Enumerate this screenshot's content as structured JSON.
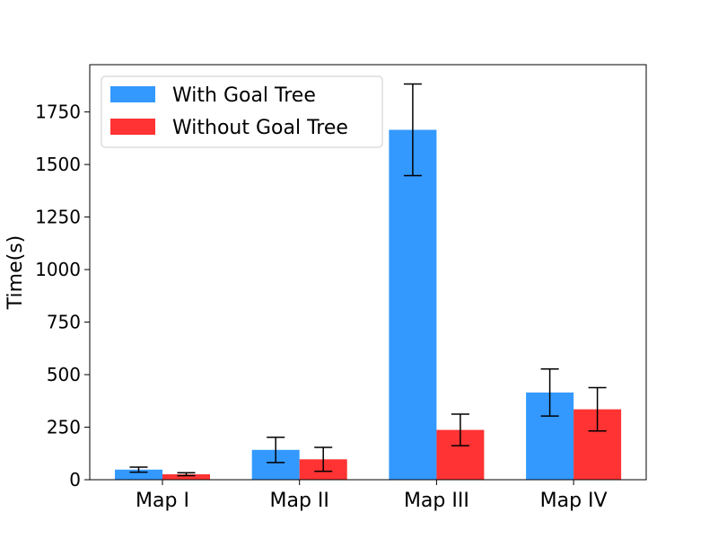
{
  "chart_data": {
    "type": "bar",
    "categories": [
      "Map I",
      "Map II",
      "Map III",
      "Map IV"
    ],
    "series": [
      {
        "name": "With Goal Tree",
        "color": "#3399ff",
        "values": [
          48,
          142,
          1665,
          415
        ],
        "error": [
          12,
          60,
          218,
          112
        ]
      },
      {
        "name": "Without Goal Tree",
        "color": "#ff3333",
        "values": [
          26,
          97,
          237,
          335
        ],
        "error": [
          7,
          57,
          75,
          103
        ]
      }
    ],
    "ylabel": "Time(s)",
    "xlabel": "",
    "ylim": [
      0,
      1975
    ],
    "yticks": [
      0,
      250,
      500,
      750,
      1000,
      1250,
      1500,
      1750
    ],
    "grid": false,
    "legend_position": "top-left"
  }
}
